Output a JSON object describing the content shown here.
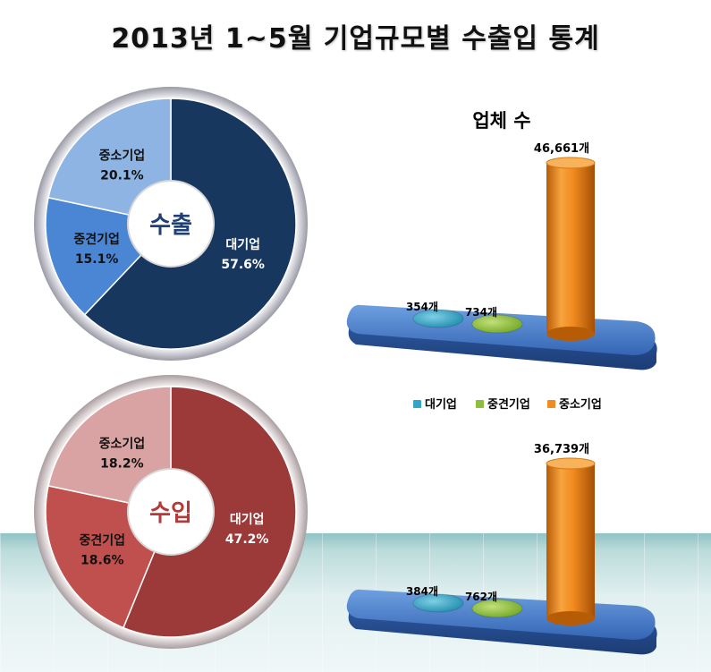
{
  "title": "2013년 1~5월 기업규모별 수출입 통계",
  "chart_data": [
    {
      "type": "pie",
      "center_label": "수출",
      "slices": [
        {
          "label": "대기업",
          "value": 57.6,
          "value_text": "57.6%",
          "color": "#17375e"
        },
        {
          "label": "중견기업",
          "value": 15.1,
          "value_text": "15.1%",
          "color": "#4a86d4"
        },
        {
          "label": "중소기업",
          "value": 20.1,
          "value_text": "20.1%",
          "color": "#8eb4e3"
        }
      ]
    },
    {
      "type": "pie",
      "center_label": "수입",
      "slices": [
        {
          "label": "대기업",
          "value": 47.2,
          "value_text": "47.2%",
          "color": "#9b3a38"
        },
        {
          "label": "중견기업",
          "value": 18.6,
          "value_text": "18.6%",
          "color": "#c0504d"
        },
        {
          "label": "중소기업",
          "value": 18.2,
          "value_text": "18.2%",
          "color": "#daa3a3"
        }
      ]
    },
    {
      "type": "bar",
      "title": "업체 수",
      "categories": [
        "대기업",
        "중견기업",
        "중소기업"
      ],
      "values": [
        354,
        734,
        46661
      ],
      "value_labels": [
        "354개",
        "734개",
        "46,661개"
      ],
      "colors": [
        "#31a5c7",
        "#8cbf3f",
        "#f28b1f"
      ]
    },
    {
      "type": "bar",
      "title": "",
      "categories": [
        "대기업",
        "중견기업",
        "중소기업"
      ],
      "values": [
        384,
        762,
        36739
      ],
      "value_labels": [
        "384개",
        "762개",
        "36,739개"
      ],
      "colors": [
        "#31a5c7",
        "#8cbf3f",
        "#f28b1f"
      ]
    }
  ],
  "legend": {
    "placement": "between-bar-charts",
    "items": [
      {
        "label": "대기업",
        "color": "#31a5c7"
      },
      {
        "label": "중견기업",
        "color": "#8cbf3f"
      },
      {
        "label": "중소기업",
        "color": "#f28b1f"
      }
    ]
  }
}
